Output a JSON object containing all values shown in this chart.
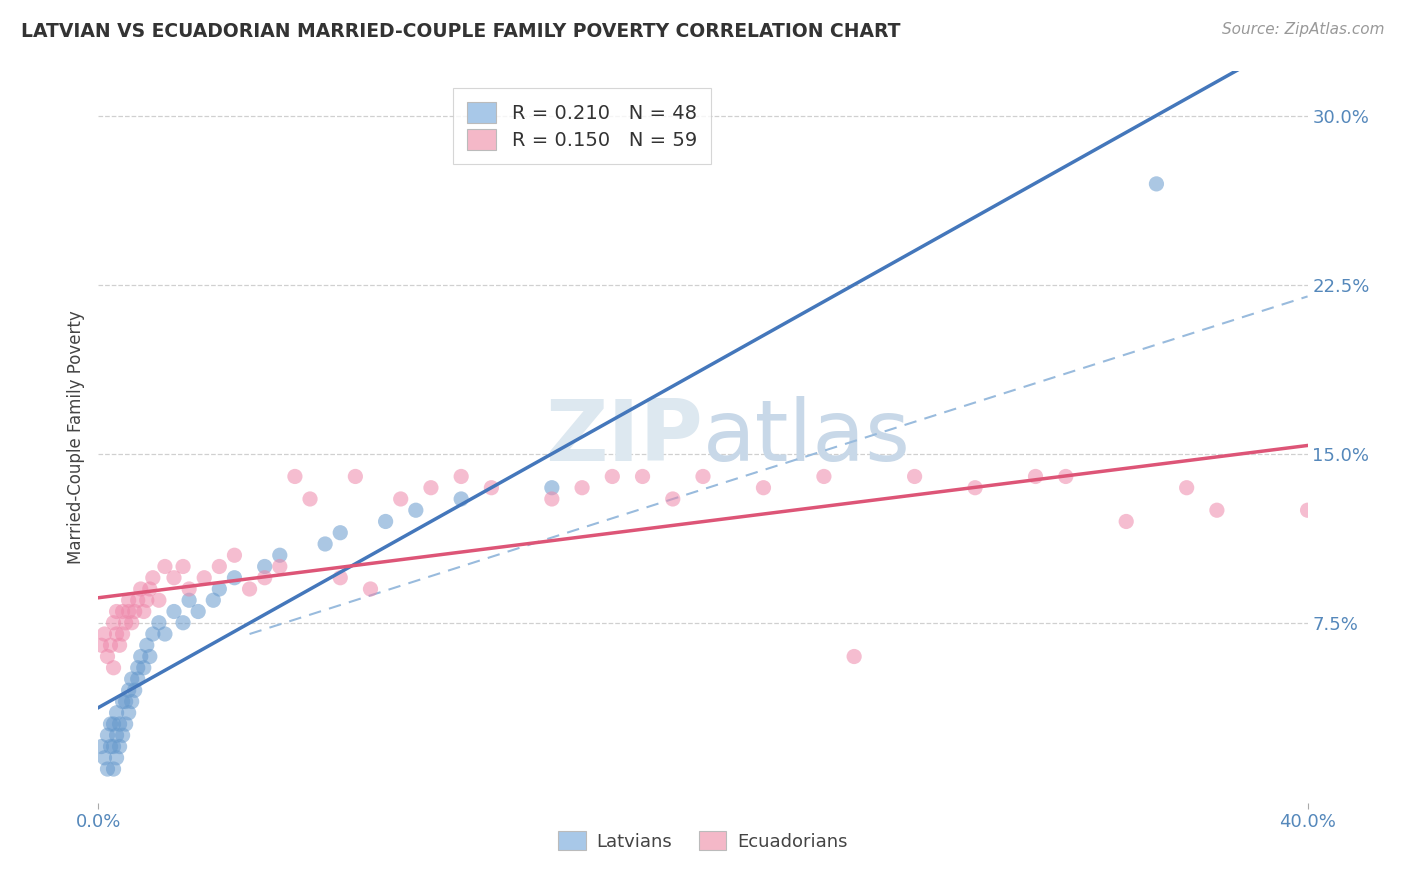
{
  "title": "LATVIAN VS ECUADORIAN MARRIED-COUPLE FAMILY POVERTY CORRELATION CHART",
  "source": "Source: ZipAtlas.com",
  "ylabel": "Married-Couple Family Poverty",
  "xlim": [
    0.0,
    0.4
  ],
  "ylim": [
    -0.005,
    0.32
  ],
  "ytick_labels_right": [
    "7.5%",
    "15.0%",
    "22.5%",
    "30.0%"
  ],
  "ytick_vals_right": [
    0.075,
    0.15,
    0.225,
    0.3
  ],
  "grid_color": "#d0d0d0",
  "background": "#ffffff",
  "blue_color": "#a8c8e8",
  "pink_color": "#f4b8c8",
  "blue_dot_color": "#6699cc",
  "pink_dot_color": "#ee88aa",
  "blue_line_color": "#4477bb",
  "pink_line_color": "#dd5577",
  "dash_line_color": "#99bbdd",
  "legend_R_blue": "0.210",
  "legend_N_blue": "48",
  "legend_R_pink": "0.150",
  "legend_N_pink": "59",
  "label_latvians": "Latvians",
  "label_ecuadorians": "Ecuadorians",
  "latvian_x": [
    0.001,
    0.002,
    0.003,
    0.003,
    0.004,
    0.004,
    0.005,
    0.005,
    0.005,
    0.006,
    0.006,
    0.006,
    0.007,
    0.007,
    0.008,
    0.008,
    0.009,
    0.009,
    0.01,
    0.01,
    0.011,
    0.011,
    0.012,
    0.013,
    0.013,
    0.014,
    0.015,
    0.016,
    0.017,
    0.018,
    0.02,
    0.022,
    0.025,
    0.028,
    0.03,
    0.033,
    0.038,
    0.04,
    0.045,
    0.055,
    0.06,
    0.075,
    0.08,
    0.095,
    0.105,
    0.12,
    0.15,
    0.35
  ],
  "latvian_y": [
    0.02,
    0.015,
    0.01,
    0.025,
    0.02,
    0.03,
    0.01,
    0.02,
    0.03,
    0.015,
    0.025,
    0.035,
    0.02,
    0.03,
    0.025,
    0.04,
    0.03,
    0.04,
    0.035,
    0.045,
    0.04,
    0.05,
    0.045,
    0.05,
    0.055,
    0.06,
    0.055,
    0.065,
    0.06,
    0.07,
    0.075,
    0.07,
    0.08,
    0.075,
    0.085,
    0.08,
    0.085,
    0.09,
    0.095,
    0.1,
    0.105,
    0.11,
    0.115,
    0.12,
    0.125,
    0.13,
    0.135,
    0.27
  ],
  "ecuadorian_x": [
    0.001,
    0.002,
    0.003,
    0.004,
    0.005,
    0.005,
    0.006,
    0.006,
    0.007,
    0.008,
    0.008,
    0.009,
    0.01,
    0.01,
    0.011,
    0.012,
    0.013,
    0.014,
    0.015,
    0.016,
    0.017,
    0.018,
    0.02,
    0.022,
    0.025,
    0.028,
    0.03,
    0.035,
    0.04,
    0.045,
    0.05,
    0.055,
    0.06,
    0.065,
    0.07,
    0.08,
    0.085,
    0.09,
    0.1,
    0.11,
    0.12,
    0.13,
    0.15,
    0.16,
    0.17,
    0.18,
    0.19,
    0.2,
    0.22,
    0.24,
    0.25,
    0.27,
    0.29,
    0.31,
    0.32,
    0.34,
    0.36,
    0.37,
    0.4
  ],
  "ecuadorian_y": [
    0.065,
    0.07,
    0.06,
    0.065,
    0.055,
    0.075,
    0.07,
    0.08,
    0.065,
    0.07,
    0.08,
    0.075,
    0.08,
    0.085,
    0.075,
    0.08,
    0.085,
    0.09,
    0.08,
    0.085,
    0.09,
    0.095,
    0.085,
    0.1,
    0.095,
    0.1,
    0.09,
    0.095,
    0.1,
    0.105,
    0.09,
    0.095,
    0.1,
    0.14,
    0.13,
    0.095,
    0.14,
    0.09,
    0.13,
    0.135,
    0.14,
    0.135,
    0.13,
    0.135,
    0.14,
    0.14,
    0.13,
    0.14,
    0.135,
    0.14,
    0.06,
    0.14,
    0.135,
    0.14,
    0.14,
    0.12,
    0.135,
    0.125,
    0.125
  ]
}
